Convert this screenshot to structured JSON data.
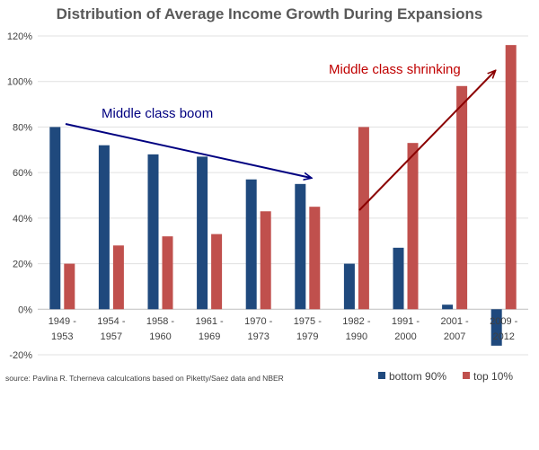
{
  "chart_data": {
    "type": "bar",
    "title": "Distribution of Average Income Growth During Expansions",
    "categories": [
      [
        "1949 -",
        "1953"
      ],
      [
        "1954 -",
        "1957"
      ],
      [
        "1958 -",
        "1960"
      ],
      [
        "1961 -",
        "1969"
      ],
      [
        "1970 -",
        "1973"
      ],
      [
        "1975 -",
        "1979"
      ],
      [
        "1982 -",
        "1990"
      ],
      [
        "1991 -",
        "2000"
      ],
      [
        "2001 -",
        "2007"
      ],
      [
        "2009 -",
        "2012"
      ]
    ],
    "series": [
      {
        "name": "bottom 90%",
        "color": "#1f497d",
        "values": [
          80,
          72,
          68,
          67,
          57,
          55,
          20,
          27,
          2,
          -16
        ]
      },
      {
        "name": "top 10%",
        "color": "#c0504d",
        "values": [
          20,
          28,
          32,
          33,
          43,
          45,
          80,
          73,
          98,
          116
        ]
      }
    ],
    "ylim": [
      -20,
      120
    ],
    "yticks": [
      "-20%",
      "0%",
      "20%",
      "40%",
      "60%",
      "80%",
      "100%",
      "120%"
    ],
    "gridlines": true,
    "legend_position": "bottom-right",
    "annotations": [
      {
        "text": "Middle class boom",
        "color": "#000080"
      },
      {
        "text": "Middle class shrinking",
        "color": "#c00000"
      }
    ],
    "source": "source: Pavlina R. Tcherneva calculcations based on Piketty/Saez data and NBER"
  }
}
